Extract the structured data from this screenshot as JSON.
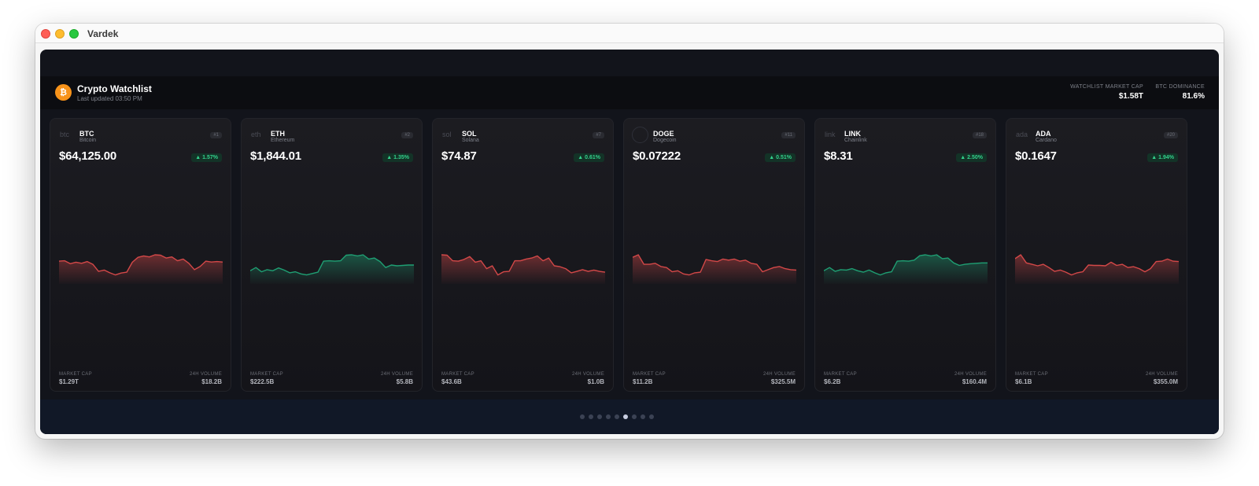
{
  "window": {
    "title": "Vardek"
  },
  "header": {
    "logo_glyph": "₿",
    "title": "Crypto Watchlist",
    "last_updated": "Last updated 03:50 PM",
    "stats": [
      {
        "label": "WATCHLIST MARKET CAP",
        "value": "$1.58T"
      },
      {
        "label": "BTC DOMINANCE",
        "value": "81.6%"
      }
    ]
  },
  "colors": {
    "up": "#33d18c",
    "up_line": "#1f9f73",
    "down_line": "#d34848",
    "accent": "#f7931a"
  },
  "cards": [
    {
      "icon_text": "btc",
      "symbol": "BTC",
      "name": "Bitcoin",
      "rank": "#1",
      "price": "$64,125.00",
      "change": "▲ 1.57%",
      "market_cap_label": "MARKET CAP",
      "market_cap": "$1.29T",
      "volume_label": "24H VOLUME",
      "volume": "$18.2B",
      "trend": "down",
      "sparkline": [
        0.7,
        0.72,
        0.58,
        0.65,
        0.6,
        0.68,
        0.55,
        0.22,
        0.28,
        0.15,
        0.05,
        0.14,
        0.18,
        0.65,
        0.88,
        0.95,
        0.9,
        1.0,
        0.98,
        0.85,
        0.9,
        0.72,
        0.8,
        0.6,
        0.3,
        0.45,
        0.7,
        0.66,
        0.68,
        0.66
      ]
    },
    {
      "icon_text": "eth",
      "symbol": "ETH",
      "name": "Ethereum",
      "rank": "#2",
      "price": "$1,844.01",
      "change": "▲ 1.35%",
      "market_cap_label": "MARKET CAP",
      "market_cap": "$222.5B",
      "volume_label": "24H VOLUME",
      "volume": "$5.8B",
      "trend": "up",
      "sparkline": [
        0.25,
        0.4,
        0.2,
        0.3,
        0.25,
        0.38,
        0.28,
        0.15,
        0.2,
        0.1,
        0.05,
        0.12,
        0.18,
        0.7,
        0.72,
        0.7,
        0.72,
        0.98,
        1.0,
        0.95,
        1.0,
        0.8,
        0.85,
        0.68,
        0.4,
        0.52,
        0.48,
        0.5,
        0.52,
        0.52
      ]
    },
    {
      "icon_text": "sol",
      "symbol": "SOL",
      "name": "Solana",
      "rank": "#7",
      "price": "$74.87",
      "change": "▲ 0.61%",
      "market_cap_label": "MARKET CAP",
      "market_cap": "$43.6B",
      "volume_label": "24H VOLUME",
      "volume": "$1.0B",
      "trend": "down",
      "sparkline": [
        1.0,
        0.98,
        0.72,
        0.7,
        0.78,
        0.92,
        0.65,
        0.72,
        0.35,
        0.48,
        0.05,
        0.2,
        0.22,
        0.72,
        0.72,
        0.8,
        0.85,
        0.95,
        0.72,
        0.85,
        0.48,
        0.44,
        0.35,
        0.15,
        0.22,
        0.3,
        0.22,
        0.28,
        0.22,
        0.18
      ]
    },
    {
      "icon_text": "",
      "symbol": "DOGE",
      "name": "Dogecoin",
      "rank": "#11",
      "price": "$0.07222",
      "change": "▲ 0.51%",
      "market_cap_label": "MARKET CAP",
      "market_cap": "$11.2B",
      "volume_label": "24H VOLUME",
      "volume": "$325.5M",
      "trend": "down",
      "sparkline": [
        0.88,
        1.0,
        0.55,
        0.55,
        0.6,
        0.45,
        0.4,
        0.2,
        0.25,
        0.1,
        0.05,
        0.15,
        0.18,
        0.78,
        0.72,
        0.68,
        0.8,
        0.75,
        0.8,
        0.7,
        0.75,
        0.6,
        0.55,
        0.2,
        0.3,
        0.4,
        0.45,
        0.35,
        0.3,
        0.28
      ]
    },
    {
      "icon_text": "link",
      "symbol": "LINK",
      "name": "Chainlink",
      "rank": "#18",
      "price": "$8.31",
      "change": "▲ 2.50%",
      "market_cap_label": "MARKET CAP",
      "market_cap": "$6.2B",
      "volume_label": "24H VOLUME",
      "volume": "$160.4M",
      "trend": "up",
      "sparkline": [
        0.25,
        0.4,
        0.22,
        0.3,
        0.28,
        0.35,
        0.25,
        0.18,
        0.28,
        0.15,
        0.05,
        0.15,
        0.2,
        0.7,
        0.72,
        0.7,
        0.75,
        0.96,
        1.0,
        0.95,
        1.0,
        0.82,
        0.85,
        0.62,
        0.5,
        0.55,
        0.58,
        0.6,
        0.62,
        0.62
      ]
    },
    {
      "icon_text": "ada",
      "symbol": "ADA",
      "name": "Cardano",
      "rank": "#20",
      "price": "$0.1647",
      "change": "▲ 1.94%",
      "market_cap_label": "MARKET CAP",
      "market_cap": "$6.1B",
      "volume_label": "24H VOLUME",
      "volume": "$355.0M",
      "trend": "down",
      "sparkline": [
        0.82,
        1.0,
        0.62,
        0.55,
        0.48,
        0.55,
        0.4,
        0.22,
        0.28,
        0.18,
        0.05,
        0.15,
        0.2,
        0.52,
        0.5,
        0.5,
        0.48,
        0.65,
        0.5,
        0.55,
        0.4,
        0.44,
        0.35,
        0.2,
        0.35,
        0.68,
        0.7,
        0.8,
        0.7,
        0.68
      ]
    }
  ],
  "pagination": {
    "count": 9,
    "active_index": 5
  }
}
